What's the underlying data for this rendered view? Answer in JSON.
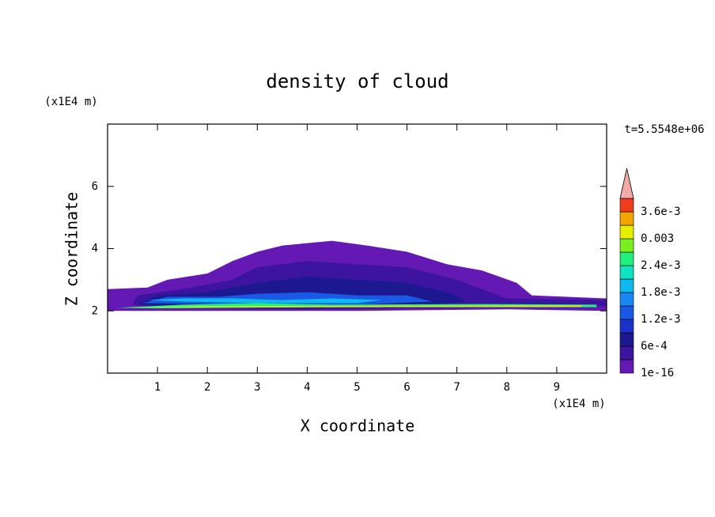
{
  "chart_data": {
    "type": "contour",
    "title": "density of cloud",
    "subtitle": "t=5.5548e+06",
    "xlabel": "X coordinate",
    "ylabel": "Z coordinate",
    "xunit": "(x1E4 m)",
    "yunit": "(x1E4 m)",
    "xlim": [
      0,
      10
    ],
    "ylim": [
      0,
      8
    ],
    "xticks": [
      1,
      2,
      3,
      4,
      5,
      6,
      7,
      8,
      9
    ],
    "yticks": [
      2,
      4,
      6
    ],
    "levels": [
      1e-16,
      0.0003,
      0.0006,
      0.0009,
      0.0012,
      0.0015,
      0.0018,
      0.0021,
      0.0024,
      0.0027,
      0.003,
      0.0033,
      0.0036,
      0.0039
    ],
    "level_labels": [
      "1e-16",
      null,
      "6e-4",
      null,
      "1.2e-3",
      null,
      "1.8e-3",
      null,
      "2.4e-3",
      null,
      "0.003",
      null,
      "3.6e-3",
      null
    ],
    "colors": [
      "#6418b4",
      "#3c14a0",
      "#1c1890",
      "#1a32c8",
      "#1a58e6",
      "#1a88f2",
      "#10b8f0",
      "#10e2c4",
      "#22f07c",
      "#78f020",
      "#e8ee00",
      "#f4a400",
      "#f03c1c"
    ],
    "extend_color": "#f4a8a8",
    "regions": [
      {
        "level": 1e-16,
        "points": [
          [
            0,
            2.0
          ],
          [
            0,
            2.7
          ],
          [
            0.8,
            2.75
          ],
          [
            1.2,
            3.0
          ],
          [
            2.0,
            3.2
          ],
          [
            2.5,
            3.6
          ],
          [
            3.0,
            3.9
          ],
          [
            3.5,
            4.1
          ],
          [
            4.5,
            4.25
          ],
          [
            5.2,
            4.1
          ],
          [
            6.0,
            3.9
          ],
          [
            6.8,
            3.5
          ],
          [
            7.5,
            3.3
          ],
          [
            8.2,
            2.9
          ],
          [
            8.5,
            2.5
          ],
          [
            10,
            2.4
          ],
          [
            10,
            2.0
          ],
          [
            8,
            2.05
          ],
          [
            5,
            2.0
          ],
          [
            2,
            2.0
          ]
        ]
      },
      {
        "level": 0.0003,
        "points": [
          [
            0.5,
            2.2
          ],
          [
            0.6,
            2.5
          ],
          [
            1.5,
            2.7
          ],
          [
            2.5,
            3.0
          ],
          [
            3.0,
            3.4
          ],
          [
            4.0,
            3.6
          ],
          [
            5.0,
            3.5
          ],
          [
            6.0,
            3.4
          ],
          [
            7.0,
            3.0
          ],
          [
            7.5,
            2.7
          ],
          [
            8,
            2.4
          ],
          [
            10,
            2.35
          ],
          [
            10,
            2.15
          ],
          [
            7,
            2.1
          ],
          [
            4,
            2.05
          ],
          [
            1,
            2.1
          ]
        ]
      },
      {
        "level": 0.0006,
        "points": [
          [
            0.6,
            2.2
          ],
          [
            1.0,
            2.5
          ],
          [
            2.0,
            2.6
          ],
          [
            3.0,
            2.9
          ],
          [
            4.0,
            3.1
          ],
          [
            5.0,
            3.0
          ],
          [
            6.0,
            2.9
          ],
          [
            6.8,
            2.6
          ],
          [
            7.2,
            2.3
          ],
          [
            6,
            2.15
          ],
          [
            4,
            2.1
          ],
          [
            2,
            2.15
          ]
        ]
      },
      {
        "level": 0.0012,
        "points": [
          [
            0.7,
            2.25
          ],
          [
            1.2,
            2.45
          ],
          [
            2.2,
            2.45
          ],
          [
            3,
            2.55
          ],
          [
            4,
            2.6
          ],
          [
            5,
            2.5
          ],
          [
            6,
            2.5
          ],
          [
            6.5,
            2.3
          ],
          [
            5,
            2.2
          ],
          [
            3,
            2.2
          ]
        ]
      },
      {
        "level": 0.0018,
        "points": [
          [
            0.8,
            2.35
          ],
          [
            1.5,
            2.4
          ],
          [
            2.5,
            2.4
          ],
          [
            3.5,
            2.35
          ],
          [
            4.5,
            2.4
          ],
          [
            5.5,
            2.35
          ],
          [
            5,
            2.25
          ],
          [
            3,
            2.25
          ],
          [
            1.5,
            2.3
          ]
        ]
      },
      {
        "level": 0.0024,
        "points": [
          [
            0.2,
            2.1
          ],
          [
            1.5,
            2.2
          ],
          [
            3,
            2.25
          ],
          [
            4.5,
            2.2
          ],
          [
            7.5,
            2.22
          ],
          [
            9.8,
            2.2
          ],
          [
            9.8,
            2.12
          ],
          [
            7,
            2.12
          ],
          [
            4,
            2.12
          ],
          [
            1,
            2.08
          ]
        ]
      },
      {
        "level": 0.003,
        "points": [
          [
            0.3,
            2.12
          ],
          [
            2,
            2.15
          ],
          [
            8,
            2.17
          ],
          [
            9.5,
            2.17
          ],
          [
            9.5,
            2.13
          ],
          [
            2,
            2.11
          ]
        ]
      }
    ]
  }
}
